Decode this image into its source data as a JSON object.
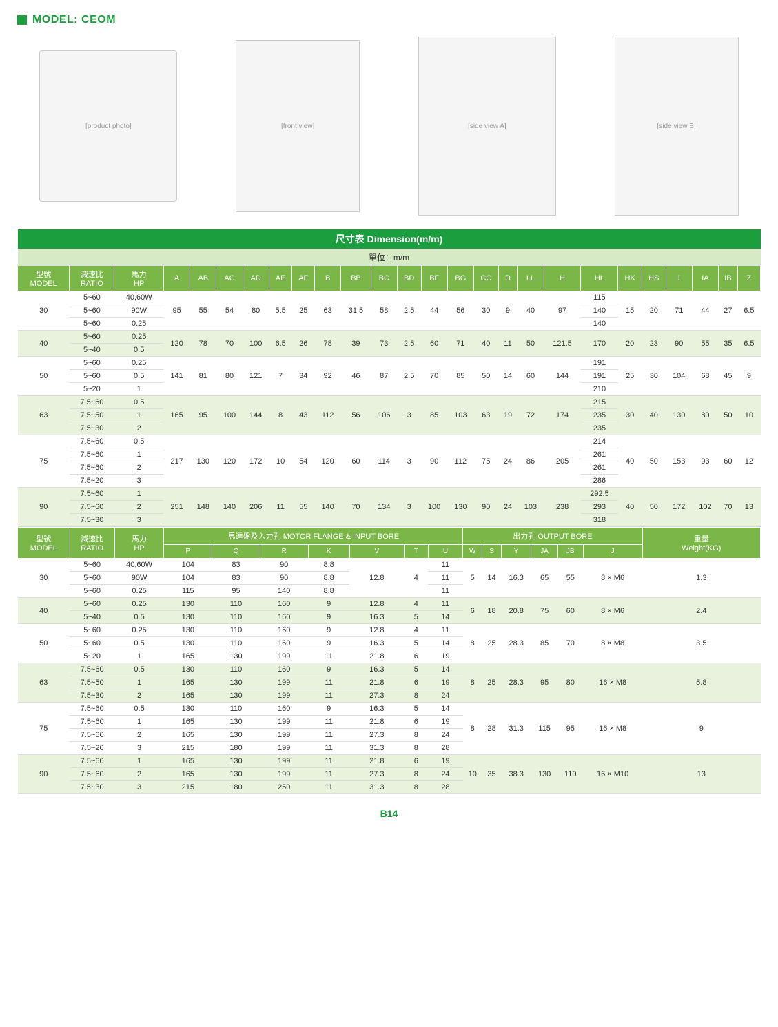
{
  "header": {
    "model_label": "MODEL: CEOM"
  },
  "colors": {
    "brand": "#1a9e3e",
    "header_bg": "#7ab648",
    "unit_bg": "#d5eac5",
    "even_row": "#e8f2dc"
  },
  "table1": {
    "title": "尺寸表 Dimension(m/m)",
    "unit": "單位：m/m",
    "head_model": "型號\nMODEL",
    "head_ratio": "減速比\nRATIO",
    "head_hp": "馬力\nHP",
    "cols": [
      "A",
      "AB",
      "AC",
      "AD",
      "AE",
      "AF",
      "B",
      "BB",
      "BC",
      "BD",
      "BF",
      "BG",
      "CC",
      "D",
      "LL",
      "H",
      "HL",
      "HK",
      "HS",
      "I",
      "IA",
      "IB",
      "Z"
    ],
    "groups": [
      {
        "model": "30",
        "shade": "odd",
        "rows": [
          {
            "ratio": "5~60",
            "hp": "40,60W",
            "hl": "115"
          },
          {
            "ratio": "5~60",
            "hp": "90W",
            "hl": "140"
          },
          {
            "ratio": "5~60",
            "hp": "0.25",
            "hl": "140"
          }
        ],
        "shared": [
          "95",
          "55",
          "54",
          "80",
          "5.5",
          "25",
          "63",
          "31.5",
          "58",
          "2.5",
          "44",
          "56",
          "30",
          "9",
          "40",
          "97"
        ],
        "tail": [
          "15",
          "20",
          "71",
          "44",
          "27",
          "6.5"
        ]
      },
      {
        "model": "40",
        "shade": "even",
        "rows": [
          {
            "ratio": "5~60",
            "hp": "0.25",
            "hl": "170"
          },
          {
            "ratio": "5~40",
            "hp": "0.5",
            "hl": "170"
          }
        ],
        "shared": [
          "120",
          "78",
          "70",
          "100",
          "6.5",
          "26",
          "78",
          "39",
          "73",
          "2.5",
          "60",
          "71",
          "40",
          "11",
          "50",
          "121.5"
        ],
        "tail": [
          "20",
          "23",
          "90",
          "55",
          "35",
          "6.5"
        ],
        "hl_merged": true
      },
      {
        "model": "50",
        "shade": "odd",
        "rows": [
          {
            "ratio": "5~60",
            "hp": "0.25",
            "hl": "191"
          },
          {
            "ratio": "5~60",
            "hp": "0.5",
            "hl": "191"
          },
          {
            "ratio": "5~20",
            "hp": "1",
            "hl": "210"
          }
        ],
        "shared": [
          "141",
          "81",
          "80",
          "121",
          "7",
          "34",
          "92",
          "46",
          "87",
          "2.5",
          "70",
          "85",
          "50",
          "14",
          "60",
          "144"
        ],
        "tail": [
          "25",
          "30",
          "104",
          "68",
          "45",
          "9"
        ]
      },
      {
        "model": "63",
        "shade": "even",
        "rows": [
          {
            "ratio": "7.5~60",
            "hp": "0.5",
            "hl": "215"
          },
          {
            "ratio": "7.5~50",
            "hp": "1",
            "hl": "235"
          },
          {
            "ratio": "7.5~30",
            "hp": "2",
            "hl": "235"
          }
        ],
        "shared": [
          "165",
          "95",
          "100",
          "144",
          "8",
          "43",
          "112",
          "56",
          "106",
          "3",
          "85",
          "103",
          "63",
          "19",
          "72",
          "174"
        ],
        "tail": [
          "30",
          "40",
          "130",
          "80",
          "50",
          "10"
        ]
      },
      {
        "model": "75",
        "shade": "odd",
        "rows": [
          {
            "ratio": "7.5~60",
            "hp": "0.5",
            "hl": "214"
          },
          {
            "ratio": "7.5~60",
            "hp": "1",
            "hl": "261"
          },
          {
            "ratio": "7.5~60",
            "hp": "2",
            "hl": "261"
          },
          {
            "ratio": "7.5~20",
            "hp": "3",
            "hl": "286"
          }
        ],
        "shared": [
          "217",
          "130",
          "120",
          "172",
          "10",
          "54",
          "120",
          "60",
          "114",
          "3",
          "90",
          "112",
          "75",
          "24",
          "86",
          "205"
        ],
        "tail": [
          "40",
          "50",
          "153",
          "93",
          "60",
          "12"
        ]
      },
      {
        "model": "90",
        "shade": "even",
        "rows": [
          {
            "ratio": "7.5~60",
            "hp": "1",
            "hl": "292.5"
          },
          {
            "ratio": "7.5~60",
            "hp": "2",
            "hl": "293"
          },
          {
            "ratio": "7.5~30",
            "hp": "3",
            "hl": "318"
          }
        ],
        "shared": [
          "251",
          "148",
          "140",
          "206",
          "11",
          "55",
          "140",
          "70",
          "134",
          "3",
          "100",
          "130",
          "90",
          "24",
          "103",
          "238"
        ],
        "tail": [
          "40",
          "50",
          "172",
          "102",
          "70",
          "13"
        ]
      }
    ]
  },
  "table2": {
    "head_model": "型號\nMODEL",
    "head_ratio": "減速比\nRATIO",
    "head_hp": "馬力\nHP",
    "sec1": "馬達盤及入力孔 MOTOR FLANGE & INPUT BORE",
    "sec2": "出力孔 OUTPUT BORE",
    "sec3": "重量\nWeight(KG)",
    "cols1": [
      "P",
      "Q",
      "R",
      "K",
      "V",
      "T",
      "U"
    ],
    "cols2": [
      "W",
      "S",
      "Y",
      "JA",
      "JB",
      "J"
    ],
    "groups": [
      {
        "model": "30",
        "shade": "odd",
        "rows": [
          {
            "ratio": "5~60",
            "hp": "40,60W",
            "p": "104",
            "q": "83",
            "r": "90",
            "k": "8.8",
            "v": "",
            "t": "",
            "u": "11"
          },
          {
            "ratio": "5~60",
            "hp": "90W",
            "p": "104",
            "q": "83",
            "r": "90",
            "k": "8.8",
            "v": "12.8",
            "t": "4",
            "u": "11"
          },
          {
            "ratio": "5~60",
            "hp": "0.25",
            "p": "115",
            "q": "95",
            "r": "140",
            "k": "8.8",
            "v": "",
            "t": "",
            "u": "11"
          }
        ],
        "vt_merged": true,
        "out": [
          "5",
          "14",
          "16.3",
          "65",
          "55",
          "8 × M6"
        ],
        "wt": "1.3"
      },
      {
        "model": "40",
        "shade": "even",
        "rows": [
          {
            "ratio": "5~60",
            "hp": "0.25",
            "p": "130",
            "q": "110",
            "r": "160",
            "k": "9",
            "v": "12.8",
            "t": "4",
            "u": "11"
          },
          {
            "ratio": "5~40",
            "hp": "0.5",
            "p": "130",
            "q": "110",
            "r": "160",
            "k": "9",
            "v": "16.3",
            "t": "5",
            "u": "14"
          }
        ],
        "out": [
          "6",
          "18",
          "20.8",
          "75",
          "60",
          "8 × M6"
        ],
        "wt": "2.4"
      },
      {
        "model": "50",
        "shade": "odd",
        "rows": [
          {
            "ratio": "5~60",
            "hp": "0.25",
            "p": "130",
            "q": "110",
            "r": "160",
            "k": "9",
            "v": "12.8",
            "t": "4",
            "u": "11"
          },
          {
            "ratio": "5~60",
            "hp": "0.5",
            "p": "130",
            "q": "110",
            "r": "160",
            "k": "9",
            "v": "16.3",
            "t": "5",
            "u": "14"
          },
          {
            "ratio": "5~20",
            "hp": "1",
            "p": "165",
            "q": "130",
            "r": "199",
            "k": "11",
            "v": "21.8",
            "t": "6",
            "u": "19"
          }
        ],
        "out": [
          "8",
          "25",
          "28.3",
          "85",
          "70",
          "8 × M8"
        ],
        "wt": "3.5"
      },
      {
        "model": "63",
        "shade": "even",
        "rows": [
          {
            "ratio": "7.5~60",
            "hp": "0.5",
            "p": "130",
            "q": "110",
            "r": "160",
            "k": "9",
            "v": "16.3",
            "t": "5",
            "u": "14"
          },
          {
            "ratio": "7.5~50",
            "hp": "1",
            "p": "165",
            "q": "130",
            "r": "199",
            "k": "11",
            "v": "21.8",
            "t": "6",
            "u": "19"
          },
          {
            "ratio": "7.5~30",
            "hp": "2",
            "p": "165",
            "q": "130",
            "r": "199",
            "k": "11",
            "v": "27.3",
            "t": "8",
            "u": "24"
          }
        ],
        "out": [
          "8",
          "25",
          "28.3",
          "95",
          "80",
          "16 × M8"
        ],
        "wt": "5.8"
      },
      {
        "model": "75",
        "shade": "odd",
        "rows": [
          {
            "ratio": "7.5~60",
            "hp": "0.5",
            "p": "130",
            "q": "110",
            "r": "160",
            "k": "9",
            "v": "16.3",
            "t": "5",
            "u": "14"
          },
          {
            "ratio": "7.5~60",
            "hp": "1",
            "p": "165",
            "q": "130",
            "r": "199",
            "k": "11",
            "v": "21.8",
            "t": "6",
            "u": "19"
          },
          {
            "ratio": "7.5~60",
            "hp": "2",
            "p": "165",
            "q": "130",
            "r": "199",
            "k": "11",
            "v": "27.3",
            "t": "8",
            "u": "24"
          },
          {
            "ratio": "7.5~20",
            "hp": "3",
            "p": "215",
            "q": "180",
            "r": "199",
            "k": "11",
            "v": "31.3",
            "t": "8",
            "u": "28"
          }
        ],
        "out": [
          "8",
          "28",
          "31.3",
          "115",
          "95",
          "16 × M8"
        ],
        "wt": "9"
      },
      {
        "model": "90",
        "shade": "even",
        "rows": [
          {
            "ratio": "7.5~60",
            "hp": "1",
            "p": "165",
            "q": "130",
            "r": "199",
            "k": "11",
            "v": "21.8",
            "t": "6",
            "u": "19"
          },
          {
            "ratio": "7.5~60",
            "hp": "2",
            "p": "165",
            "q": "130",
            "r": "199",
            "k": "11",
            "v": "27.3",
            "t": "8",
            "u": "24"
          },
          {
            "ratio": "7.5~30",
            "hp": "3",
            "p": "215",
            "q": "180",
            "r": "250",
            "k": "11",
            "v": "31.3",
            "t": "8",
            "u": "28"
          }
        ],
        "out": [
          "10",
          "35",
          "38.3",
          "130",
          "110",
          "16 × M10"
        ],
        "wt": "13"
      }
    ]
  },
  "page_num": "B14"
}
